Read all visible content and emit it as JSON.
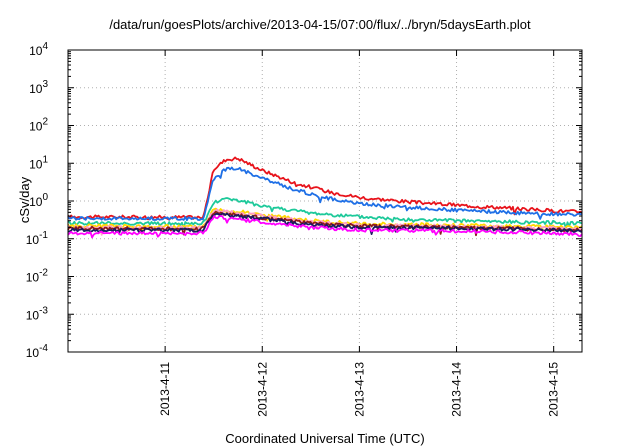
{
  "chart_data": {
    "type": "line",
    "title": "/data/run/goesPlots/archive/2013-04-15/07:00/flux/../bryn/5daysEarth.plot",
    "xlabel": "Coordinated Universal Time (UTC)",
    "ylabel": "cSv/day",
    "yscale": "log",
    "ylim": [
      0.0001,
      10000
    ],
    "xlim": [
      "2013-04-10 00:00",
      "2013-04-15 07:00"
    ],
    "grid": true,
    "legend": "none",
    "x_ticks": [
      "2013-4-11",
      "2013-4-12",
      "2013-4-13",
      "2013-4-14",
      "2013-4-15"
    ],
    "y_ticks": [
      {
        "base": "10",
        "exp": "-4"
      },
      {
        "base": "10",
        "exp": "-3"
      },
      {
        "base": "10",
        "exp": "-2"
      },
      {
        "base": "10",
        "exp": "-1"
      },
      {
        "base": "10",
        "exp": "0"
      },
      {
        "base": "10",
        "exp": "1"
      },
      {
        "base": "10",
        "exp": "2"
      },
      {
        "base": "10",
        "exp": "3"
      },
      {
        "base": "10",
        "exp": "4"
      }
    ],
    "series": [
      {
        "color": "#e8141c",
        "x": [
          "2013-04-10 00:00",
          "2013-04-11 08:00",
          "2013-04-11 09:30",
          "2013-04-11 12:00",
          "2013-04-11 15:00",
          "2013-04-11 18:00",
          "2013-04-12 00:00",
          "2013-04-12 08:00",
          "2013-04-12 16:00",
          "2013-04-13 00:00",
          "2013-04-13 12:00",
          "2013-04-14 00:00",
          "2013-04-14 12:00",
          "2013-04-15 00:00",
          "2013-04-15 07:00"
        ],
        "y": [
          0.38,
          0.37,
          0.38,
          7.0,
          12.5,
          13.5,
          6.5,
          3.0,
          1.8,
          1.25,
          0.95,
          0.78,
          0.66,
          0.55,
          0.52
        ]
      },
      {
        "color": "#1e6fe6",
        "x": [
          "2013-04-10 00:00",
          "2013-04-11 08:00",
          "2013-04-11 09:30",
          "2013-04-11 12:00",
          "2013-04-11 15:00",
          "2013-04-11 18:00",
          "2013-04-12 00:00",
          "2013-04-12 08:00",
          "2013-04-12 16:00",
          "2013-04-13 00:00",
          "2013-04-13 12:00",
          "2013-04-14 00:00",
          "2013-04-14 12:00",
          "2013-04-15 00:00",
          "2013-04-15 07:00"
        ],
        "y": [
          0.35,
          0.34,
          0.35,
          4.0,
          7.0,
          7.5,
          4.0,
          2.0,
          1.2,
          0.85,
          0.68,
          0.57,
          0.5,
          0.45,
          0.43
        ]
      },
      {
        "color": "#1dc99a",
        "x": [
          "2013-04-10 00:00",
          "2013-04-11 08:00",
          "2013-04-11 09:30",
          "2013-04-11 12:00",
          "2013-04-11 15:00",
          "2013-04-12 00:00",
          "2013-04-12 12:00",
          "2013-04-13 00:00",
          "2013-04-13 12:00",
          "2013-04-14 00:00",
          "2013-04-14 12:00",
          "2013-04-15 00:00",
          "2013-04-15 07:00"
        ],
        "y": [
          0.26,
          0.25,
          0.26,
          0.9,
          1.2,
          0.75,
          0.48,
          0.38,
          0.32,
          0.3,
          0.28,
          0.27,
          0.26
        ]
      },
      {
        "color": "#ffd700",
        "x": [
          "2013-04-10 00:00",
          "2013-04-11 08:00",
          "2013-04-11 09:30",
          "2013-04-11 12:00",
          "2013-04-12 00:00",
          "2013-04-12 12:00",
          "2013-04-13 00:00",
          "2013-04-14 00:00",
          "2013-04-15 00:00",
          "2013-04-15 07:00"
        ],
        "y": [
          0.22,
          0.21,
          0.22,
          0.62,
          0.44,
          0.3,
          0.25,
          0.23,
          0.21,
          0.2
        ]
      },
      {
        "color": "#ff9ec8",
        "x": [
          "2013-04-10 00:00",
          "2013-04-11 08:00",
          "2013-04-11 09:30",
          "2013-04-11 12:00",
          "2013-04-12 00:00",
          "2013-04-12 12:00",
          "2013-04-13 00:00",
          "2013-04-14 00:00",
          "2013-04-15 00:00",
          "2013-04-15 07:00"
        ],
        "y": [
          0.2,
          0.19,
          0.2,
          0.56,
          0.4,
          0.28,
          0.23,
          0.21,
          0.19,
          0.18
        ]
      },
      {
        "color": "#8b1a1a",
        "x": [
          "2013-04-10 00:00",
          "2013-04-11 08:00",
          "2013-04-11 09:30",
          "2013-04-11 12:00",
          "2013-04-12 00:00",
          "2013-04-12 12:00",
          "2013-04-13 00:00",
          "2013-04-14 00:00",
          "2013-04-15 00:00",
          "2013-04-15 07:00"
        ],
        "y": [
          0.19,
          0.18,
          0.19,
          0.5,
          0.36,
          0.26,
          0.22,
          0.2,
          0.18,
          0.17
        ]
      },
      {
        "color": "#1a1a5e",
        "x": [
          "2013-04-10 00:00",
          "2013-04-11 08:00",
          "2013-04-11 09:30",
          "2013-04-11 12:00",
          "2013-04-12 00:00",
          "2013-04-12 12:00",
          "2013-04-13 00:00",
          "2013-04-14 00:00",
          "2013-04-15 00:00",
          "2013-04-15 07:00"
        ],
        "y": [
          0.17,
          0.17,
          0.17,
          0.47,
          0.34,
          0.24,
          0.2,
          0.19,
          0.17,
          0.16
        ]
      },
      {
        "color": "#ff00ff",
        "x": [
          "2013-04-10 00:00",
          "2013-04-11 08:00",
          "2013-04-11 09:30",
          "2013-04-11 12:00",
          "2013-04-12 00:00",
          "2013-04-12 12:00",
          "2013-04-13 00:00",
          "2013-04-14 00:00",
          "2013-04-15 00:00",
          "2013-04-15 07:00"
        ],
        "y": [
          0.14,
          0.14,
          0.14,
          0.38,
          0.28,
          0.2,
          0.17,
          0.16,
          0.14,
          0.13
        ]
      }
    ]
  }
}
